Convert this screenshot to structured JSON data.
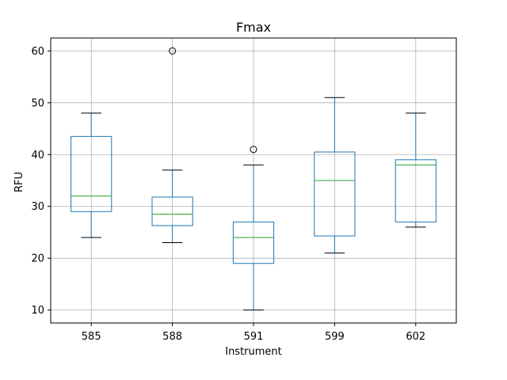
{
  "chart_data": {
    "type": "box",
    "title": "Fmax",
    "xlabel": "Instrument",
    "ylabel": "RFU",
    "categories": [
      "585",
      "588",
      "591",
      "599",
      "602"
    ],
    "ylim": [
      7.5,
      62.5
    ],
    "yticks": [
      10,
      20,
      30,
      40,
      50,
      60
    ],
    "grid": true,
    "boxes": [
      {
        "category": "585",
        "whisker_low": 24,
        "q1": 29.0,
        "median": 32.0,
        "q3": 43.5,
        "whisker_high": 48,
        "outliers": []
      },
      {
        "category": "588",
        "whisker_low": 23,
        "q1": 26.3,
        "median": 28.5,
        "q3": 31.8,
        "whisker_high": 37,
        "outliers": [
          60
        ]
      },
      {
        "category": "591",
        "whisker_low": 10,
        "q1": 19.0,
        "median": 24.0,
        "q3": 27.0,
        "whisker_high": 38,
        "outliers": [
          41
        ]
      },
      {
        "category": "599",
        "whisker_low": 21,
        "q1": 24.3,
        "median": 35.0,
        "q3": 40.5,
        "whisker_high": 51,
        "outliers": []
      },
      {
        "category": "602",
        "whisker_low": 26,
        "q1": 27.0,
        "median": 38.0,
        "q3": 39.0,
        "whisker_high": 48,
        "outliers": []
      }
    ],
    "colors": {
      "box": "#1f77b4",
      "median": "#2ca02c",
      "whisker": "#1f77b4",
      "cap": "#000000",
      "grid": "#b0b0b0",
      "outlier": "#000000"
    }
  }
}
